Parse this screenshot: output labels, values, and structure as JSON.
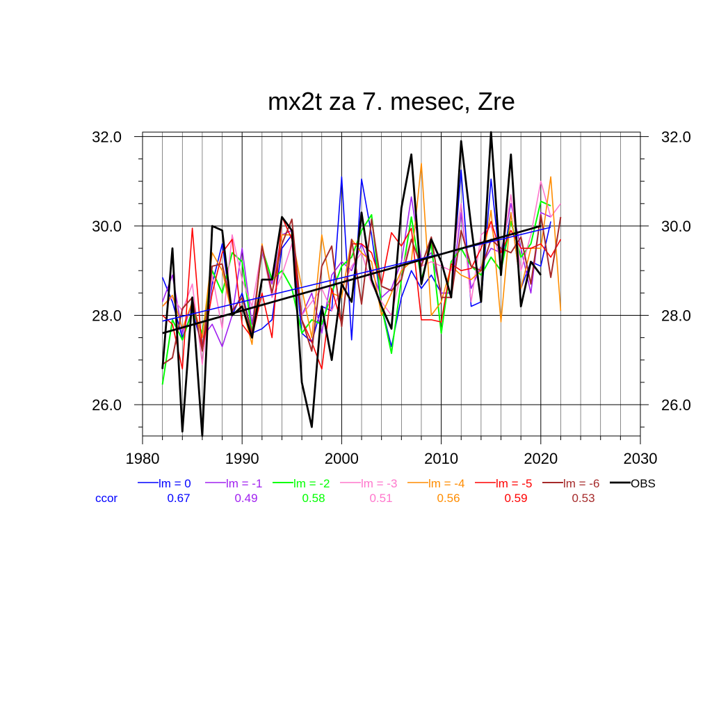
{
  "chart_data": {
    "type": "line",
    "title": "mx2t za 7. mesec, Zre",
    "xlim": [
      1980,
      2030
    ],
    "ylim": [
      25.3,
      32.1
    ],
    "x_ticks": [
      1980,
      1990,
      2000,
      2010,
      2020,
      2030
    ],
    "x_tick_labels": [
      "1980",
      "1990",
      "2000",
      "2010",
      "2020",
      "2030"
    ],
    "y_ticks": [
      26,
      28,
      30,
      32
    ],
    "y_tick_labels": [
      "26.0",
      "28.0",
      "30.0",
      "32.0"
    ],
    "grid": true,
    "ccor_label": "ccor",
    "series": [
      {
        "name": "lm = 0",
        "color": "#0000ff",
        "ccor": "0.67",
        "width": 1.6,
        "x": [
          1982,
          1983,
          1984,
          1985,
          1986,
          1987,
          1988,
          1989,
          1990,
          1991,
          1992,
          1993,
          1994,
          1995,
          1996,
          1997,
          1998,
          1999,
          2000,
          2001,
          2002,
          2003,
          2004,
          2005,
          2006,
          2007,
          2008,
          2009,
          2010,
          2011,
          2012,
          2013,
          2014,
          2015,
          2016,
          2017,
          2018,
          2019,
          2020,
          2021
        ],
        "values": [
          28.85,
          28.3,
          27.5,
          28.1,
          27.3,
          28.7,
          29.6,
          28.0,
          28.5,
          27.6,
          27.7,
          27.9,
          29.5,
          29.8,
          27.6,
          27.4,
          28.2,
          28.1,
          31.1,
          27.45,
          31.05,
          29.8,
          28.2,
          27.3,
          28.4,
          29.0,
          28.6,
          28.9,
          28.5,
          28.5,
          31.25,
          28.2,
          28.3,
          31.05,
          29.0,
          30.3,
          28.6,
          29.2,
          29.1,
          30.1
        ],
        "trend": [
          [
            1982,
            27.87
          ],
          [
            2021,
            29.97
          ]
        ]
      },
      {
        "name": "lm = -1",
        "color": "#a020f0",
        "ccor": "0.49",
        "width": 1.6,
        "x": [
          1982,
          1983,
          1984,
          1985,
          1986,
          1987,
          1988,
          1989,
          1990,
          1991,
          1992,
          1993,
          1994,
          1995,
          1996,
          1997,
          1998,
          1999,
          2000,
          2001,
          2002,
          2003,
          2004,
          2005,
          2006,
          2007,
          2008,
          2009,
          2010,
          2011,
          2012,
          2013,
          2014,
          2015,
          2016,
          2017,
          2018,
          2019,
          2020,
          2021
        ],
        "values": [
          28.3,
          28.9,
          27.6,
          28.3,
          27.5,
          27.8,
          27.3,
          28.0,
          29.5,
          27.8,
          29.4,
          28.7,
          29.8,
          29.9,
          28.0,
          28.5,
          27.6,
          28.9,
          29.2,
          29.0,
          29.6,
          29.0,
          28.4,
          28.6,
          29.2,
          30.65,
          29.2,
          29.4,
          28.5,
          28.5,
          30.3,
          28.6,
          29.1,
          29.5,
          29.4,
          30.5,
          29.5,
          28.5,
          30.3,
          30.2
        ]
      },
      {
        "name": "lm = -2",
        "color": "#00ff00",
        "ccor": "0.58",
        "width": 2.0,
        "x": [
          1982,
          1983,
          1984,
          1985,
          1986,
          1987,
          1988,
          1989,
          1990,
          1991,
          1992,
          1993,
          1994,
          1995,
          1996,
          1997,
          1998,
          1999,
          2000,
          2001,
          2002,
          2003,
          2004,
          2005,
          2006,
          2007,
          2008,
          2009,
          2010,
          2011,
          2012,
          2013,
          2014,
          2015,
          2016,
          2017,
          2018,
          2019,
          2020,
          2021
        ],
        "values": [
          26.45,
          27.9,
          27.45,
          28.1,
          27.6,
          29.0,
          28.5,
          29.4,
          29.2,
          27.6,
          29.5,
          28.8,
          29.0,
          28.6,
          27.6,
          27.9,
          27.8,
          28.5,
          29.1,
          29.3,
          29.9,
          30.25,
          28.2,
          27.15,
          28.8,
          30.2,
          28.8,
          29.6,
          27.6,
          29.2,
          29.5,
          29.1,
          28.9,
          29.3,
          29.0,
          30.1,
          29.3,
          29.6,
          30.55,
          30.45
        ]
      },
      {
        "name": "lm = -3",
        "color": "#ff77cc",
        "ccor": "0.51",
        "width": 1.6,
        "x": [
          1982,
          1983,
          1984,
          1985,
          1986,
          1987,
          1988,
          1989,
          1990,
          1991,
          1992,
          1993,
          1994,
          1995,
          1996,
          1997,
          1998,
          1999,
          2000,
          2001,
          2002,
          2003,
          2004,
          2005,
          2006,
          2007,
          2008,
          2009,
          2010,
          2011,
          2012,
          2013,
          2014,
          2015,
          2016,
          2017,
          2018,
          2019,
          2020,
          2021,
          2022
        ],
        "values": [
          28.2,
          28.4,
          28.1,
          28.7,
          26.9,
          28.9,
          27.7,
          29.8,
          28.8,
          28.2,
          29.5,
          28.4,
          28.9,
          29.6,
          28.0,
          28.3,
          28.6,
          28.1,
          28.6,
          29.1,
          29.4,
          28.7,
          28.3,
          28.0,
          29.0,
          29.7,
          29.1,
          29.2,
          29.1,
          29.0,
          30.5,
          28.3,
          29.8,
          30.0,
          29.2,
          30.7,
          29.0,
          29.8,
          31.0,
          30.2,
          30.5
        ]
      },
      {
        "name": "lm = -4",
        "color": "#ff8c00",
        "ccor": "0.56",
        "width": 1.6,
        "x": [
          1982,
          1983,
          1984,
          1985,
          1986,
          1987,
          1988,
          1989,
          1990,
          1991,
          1992,
          1993,
          1994,
          1995,
          1996,
          1997,
          1998,
          1999,
          2000,
          2001,
          2002,
          2003,
          2004,
          2005,
          2006,
          2007,
          2008,
          2009,
          2010,
          2011,
          2012,
          2013,
          2014,
          2015,
          2016,
          2017,
          2018,
          2019,
          2020,
          2021,
          2022
        ],
        "values": [
          28.2,
          28.45,
          27.7,
          28.3,
          27.5,
          29.4,
          29.0,
          28.0,
          28.2,
          27.35,
          29.6,
          28.5,
          29.8,
          29.8,
          28.6,
          27.5,
          29.8,
          28.5,
          28.4,
          29.7,
          29.4,
          29.2,
          28.0,
          28.5,
          29.0,
          29.2,
          31.4,
          28.0,
          28.3,
          29.1,
          28.9,
          28.8,
          29.0,
          30.35,
          27.85,
          30.3,
          28.6,
          29.5,
          29.5,
          31.1,
          28.1
        ]
      },
      {
        "name": "lm = -5",
        "color": "#ff0000",
        "ccor": "0.59",
        "width": 1.6,
        "x": [
          1982,
          1983,
          1984,
          1985,
          1986,
          1987,
          1988,
          1989,
          1990,
          1991,
          1992,
          1993,
          1994,
          1995,
          1996,
          1997,
          1998,
          1999,
          2000,
          2001,
          2002,
          2003,
          2004,
          2005,
          2006,
          2007,
          2008,
          2009,
          2010,
          2011,
          2012,
          2013,
          2014,
          2015,
          2016,
          2017,
          2018,
          2019,
          2020,
          2021,
          2022
        ],
        "values": [
          28.0,
          27.8,
          26.8,
          29.95,
          27.2,
          28.5,
          29.4,
          29.7,
          27.8,
          27.5,
          28.5,
          27.5,
          30.2,
          29.7,
          27.9,
          27.4,
          26.8,
          28.6,
          27.8,
          29.6,
          29.6,
          29.4,
          28.7,
          29.85,
          29.55,
          29.95,
          27.9,
          27.9,
          27.85,
          29.15,
          29.0,
          29.05,
          29.5,
          30.1,
          29.4,
          29.9,
          29.5,
          29.5,
          29.6,
          29.3,
          29.7
        ]
      },
      {
        "name": "lm = -6",
        "color": "#a52a2a",
        "ccor": "0.53",
        "width": 2.0,
        "x": [
          1982,
          1983,
          1984,
          1985,
          1986,
          1987,
          1988,
          1989,
          1990,
          1991,
          1992,
          1993,
          1994,
          1995,
          1996,
          1997,
          1998,
          1999,
          2000,
          2001,
          2002,
          2003,
          2004,
          2005,
          2006,
          2007,
          2008,
          2009,
          2010,
          2011,
          2012,
          2013,
          2014,
          2015,
          2016,
          2017,
          2018,
          2019,
          2020,
          2021,
          2022
        ],
        "values": [
          26.9,
          27.05,
          28.15,
          28.4,
          27.2,
          29.1,
          29.15,
          28.1,
          28.4,
          27.6,
          29.55,
          28.5,
          29.6,
          30.15,
          27.9,
          27.2,
          29.1,
          29.55,
          27.75,
          29.7,
          28.25,
          30.15,
          28.65,
          28.55,
          28.8,
          29.7,
          29.1,
          29.75,
          28.4,
          28.4,
          29.9,
          29.1,
          29.0,
          29.7,
          29.5,
          29.4,
          29.75,
          28.7,
          30.25,
          28.85,
          30.2
        ]
      },
      {
        "name": "OBS",
        "color": "#000000",
        "ccor": "",
        "width": 2.8,
        "x": [
          1982,
          1983,
          1984,
          1985,
          1986,
          1987,
          1988,
          1989,
          1990,
          1991,
          1992,
          1993,
          1994,
          1995,
          1996,
          1997,
          1998,
          1999,
          2000,
          2001,
          2002,
          2003,
          2004,
          2005,
          2006,
          2007,
          2008,
          2009,
          2010,
          2011,
          2012,
          2013,
          2014,
          2015,
          2016,
          2017,
          2018,
          2019,
          2020
        ],
        "values": [
          26.8,
          29.5,
          25.4,
          28.4,
          25.3,
          30.0,
          29.9,
          28.0,
          28.2,
          27.5,
          28.8,
          28.8,
          30.2,
          29.9,
          26.5,
          25.5,
          28.2,
          27.0,
          28.7,
          28.3,
          30.3,
          28.8,
          28.2,
          27.7,
          30.4,
          31.6,
          28.7,
          29.7,
          29.2,
          28.4,
          31.9,
          30.0,
          28.3,
          32.1,
          28.9,
          31.6,
          28.2,
          29.2,
          28.9
        ],
        "trend": [
          [
            1982,
            27.6
          ],
          [
            2020,
            30.0
          ]
        ]
      }
    ]
  }
}
